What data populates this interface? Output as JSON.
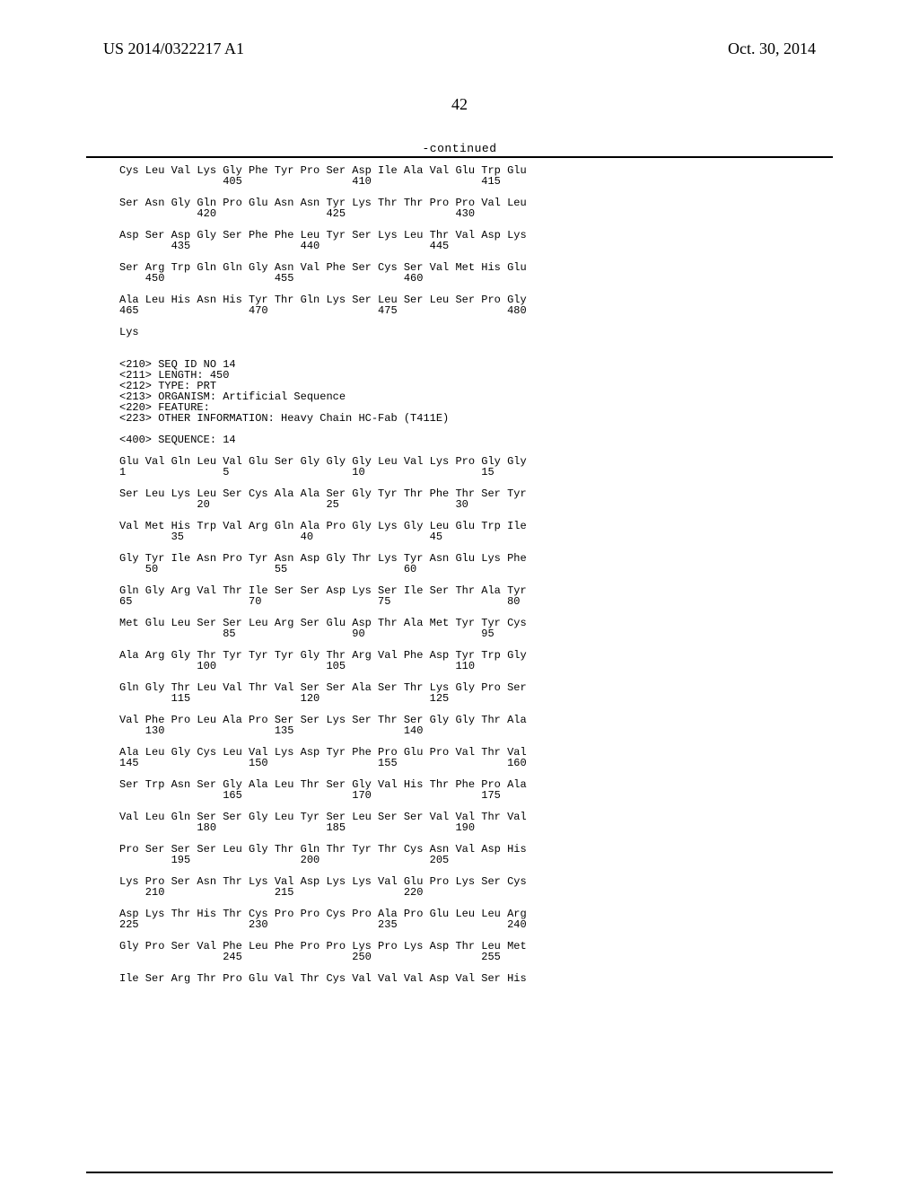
{
  "header": {
    "left": "US 2014/0322217 A1",
    "right": "Oct. 30, 2014",
    "pagenum": "42",
    "continued": "-continued"
  },
  "lines": [
    "Cys Leu Val Lys Gly Phe Tyr Pro Ser Asp Ile Ala Val Glu Trp Glu",
    "                405                 410                 415",
    "",
    "Ser Asn Gly Gln Pro Glu Asn Asn Tyr Lys Thr Thr Pro Pro Val Leu",
    "            420                 425                 430",
    "",
    "Asp Ser Asp Gly Ser Phe Phe Leu Tyr Ser Lys Leu Thr Val Asp Lys",
    "        435                 440                 445",
    "",
    "Ser Arg Trp Gln Gln Gly Asn Val Phe Ser Cys Ser Val Met His Glu",
    "    450                 455                 460",
    "",
    "Ala Leu His Asn His Tyr Thr Gln Lys Ser Leu Ser Leu Ser Pro Gly",
    "465                 470                 475                 480",
    "",
    "Lys",
    "",
    "",
    "<210> SEQ ID NO 14",
    "<211> LENGTH: 450",
    "<212> TYPE: PRT",
    "<213> ORGANISM: Artificial Sequence",
    "<220> FEATURE:",
    "<223> OTHER INFORMATION: Heavy Chain HC-Fab (T411E)",
    "",
    "<400> SEQUENCE: 14",
    "",
    "Glu Val Gln Leu Val Glu Ser Gly Gly Gly Leu Val Lys Pro Gly Gly",
    "1               5                   10                  15",
    "",
    "Ser Leu Lys Leu Ser Cys Ala Ala Ser Gly Tyr Thr Phe Thr Ser Tyr",
    "            20                  25                  30",
    "",
    "Val Met His Trp Val Arg Gln Ala Pro Gly Lys Gly Leu Glu Trp Ile",
    "        35                  40                  45",
    "",
    "Gly Tyr Ile Asn Pro Tyr Asn Asp Gly Thr Lys Tyr Asn Glu Lys Phe",
    "    50                  55                  60",
    "",
    "Gln Gly Arg Val Thr Ile Ser Ser Asp Lys Ser Ile Ser Thr Ala Tyr",
    "65                  70                  75                  80",
    "",
    "Met Glu Leu Ser Ser Leu Arg Ser Glu Asp Thr Ala Met Tyr Tyr Cys",
    "                85                  90                  95",
    "",
    "Ala Arg Gly Thr Tyr Tyr Tyr Gly Thr Arg Val Phe Asp Tyr Trp Gly",
    "            100                 105                 110",
    "",
    "Gln Gly Thr Leu Val Thr Val Ser Ser Ala Ser Thr Lys Gly Pro Ser",
    "        115                 120                 125",
    "",
    "Val Phe Pro Leu Ala Pro Ser Ser Lys Ser Thr Ser Gly Gly Thr Ala",
    "    130                 135                 140",
    "",
    "Ala Leu Gly Cys Leu Val Lys Asp Tyr Phe Pro Glu Pro Val Thr Val",
    "145                 150                 155                 160",
    "",
    "Ser Trp Asn Ser Gly Ala Leu Thr Ser Gly Val His Thr Phe Pro Ala",
    "                165                 170                 175",
    "",
    "Val Leu Gln Ser Ser Gly Leu Tyr Ser Leu Ser Ser Val Val Thr Val",
    "            180                 185                 190",
    "",
    "Pro Ser Ser Ser Leu Gly Thr Gln Thr Tyr Thr Cys Asn Val Asp His",
    "        195                 200                 205",
    "",
    "Lys Pro Ser Asn Thr Lys Val Asp Lys Lys Val Glu Pro Lys Ser Cys",
    "    210                 215                 220",
    "",
    "Asp Lys Thr His Thr Cys Pro Pro Cys Pro Ala Pro Glu Leu Leu Arg",
    "225                 230                 235                 240",
    "",
    "Gly Pro Ser Val Phe Leu Phe Pro Pro Lys Pro Lys Asp Thr Leu Met",
    "                245                 250                 255",
    "",
    "Ile Ser Arg Thr Pro Glu Val Thr Cys Val Val Val Asp Val Ser His"
  ]
}
